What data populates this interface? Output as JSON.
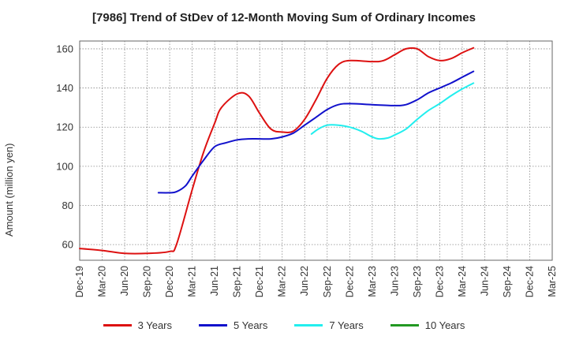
{
  "chart_data": {
    "type": "line",
    "title": "[7986]  Trend of StDev of 12-Month Moving Sum of Ordinary Incomes",
    "xlabel": "",
    "ylabel": "Amount (million yen)",
    "ylim": [
      52,
      164
    ],
    "yticks": [
      60,
      80,
      100,
      120,
      140,
      160
    ],
    "x_categories": [
      "Dec-19",
      "Mar-20",
      "Jun-20",
      "Sep-20",
      "Dec-20",
      "Mar-21",
      "Jun-21",
      "Sep-21",
      "Dec-21",
      "Mar-22",
      "Jun-22",
      "Sep-22",
      "Dec-22",
      "Mar-23",
      "Jun-23",
      "Sep-23",
      "Dec-23",
      "Mar-24",
      "Jun-24",
      "Sep-24",
      "Dec-24",
      "Mar-25"
    ],
    "grid": true,
    "legend_position": "bottom",
    "series": [
      {
        "name": "3 Years",
        "color": "#dd1111",
        "points": [
          [
            0,
            58
          ],
          [
            1,
            57
          ],
          [
            2,
            55.5
          ],
          [
            3,
            55.5
          ],
          [
            4,
            56.5
          ],
          [
            4.3,
            60
          ],
          [
            5,
            88
          ],
          [
            5.5,
            107
          ],
          [
            6,
            122
          ],
          [
            6.3,
            130
          ],
          [
            7,
            137
          ],
          [
            7.5,
            136
          ],
          [
            8,
            127
          ],
          [
            8.5,
            119
          ],
          [
            9,
            117.5
          ],
          [
            9.5,
            118
          ],
          [
            10,
            124
          ],
          [
            10.5,
            134
          ],
          [
            11,
            145
          ],
          [
            11.5,
            152
          ],
          [
            12,
            154
          ],
          [
            13,
            153.5
          ],
          [
            13.5,
            154
          ],
          [
            14,
            157
          ],
          [
            14.5,
            160
          ],
          [
            15,
            160
          ],
          [
            15.5,
            156
          ],
          [
            16,
            154
          ],
          [
            16.5,
            155
          ],
          [
            17,
            158
          ],
          [
            17.5,
            160.5
          ]
        ]
      },
      {
        "name": "5 Years",
        "color": "#1111cc",
        "points": [
          [
            3.5,
            86.5
          ],
          [
            4,
            86.5
          ],
          [
            4.3,
            87
          ],
          [
            4.7,
            90
          ],
          [
            5,
            95
          ],
          [
            5.5,
            103
          ],
          [
            6,
            110
          ],
          [
            6.5,
            112
          ],
          [
            7,
            113.5
          ],
          [
            7.5,
            114
          ],
          [
            8,
            114
          ],
          [
            8.5,
            114
          ],
          [
            9,
            115
          ],
          [
            9.5,
            117
          ],
          [
            10,
            121
          ],
          [
            10.5,
            125
          ],
          [
            11,
            129
          ],
          [
            11.5,
            131.5
          ],
          [
            12,
            132
          ],
          [
            13,
            131.5
          ],
          [
            14,
            131
          ],
          [
            14.5,
            131.5
          ],
          [
            15,
            134
          ],
          [
            15.5,
            137.5
          ],
          [
            16,
            140
          ],
          [
            16.5,
            142.5
          ],
          [
            17,
            145.5
          ],
          [
            17.5,
            148.5
          ]
        ]
      },
      {
        "name": "7 Years",
        "color": "#22eeee",
        "points": [
          [
            10.3,
            116.5
          ],
          [
            10.6,
            119
          ],
          [
            11,
            121
          ],
          [
            11.5,
            121
          ],
          [
            12,
            120
          ],
          [
            12.5,
            118
          ],
          [
            13,
            115
          ],
          [
            13.3,
            114
          ],
          [
            13.7,
            114.5
          ],
          [
            14,
            116
          ],
          [
            14.5,
            119
          ],
          [
            15,
            124
          ],
          [
            15.5,
            128.5
          ],
          [
            16,
            132
          ],
          [
            16.5,
            136
          ],
          [
            17,
            139.5
          ],
          [
            17.5,
            142.5
          ]
        ]
      },
      {
        "name": "10 Years",
        "color": "#229922",
        "points": []
      }
    ]
  }
}
